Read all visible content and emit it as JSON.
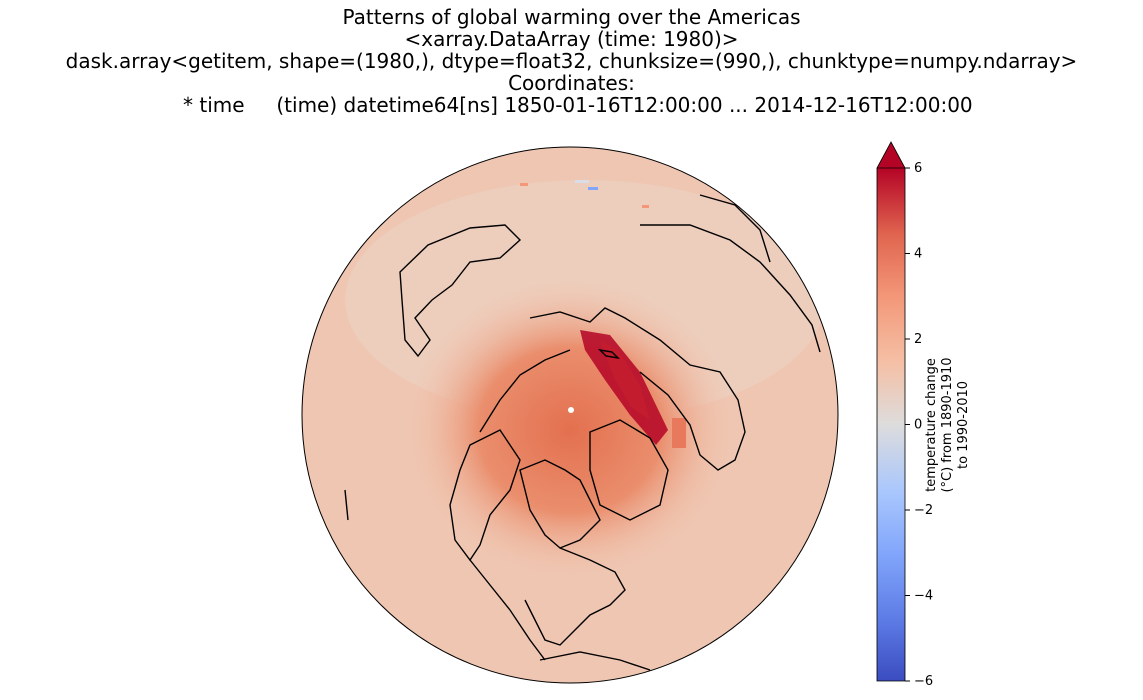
{
  "title": {
    "lines": [
      "Patterns of global warming over the Americas",
      "<xarray.DataArray (time: 1980)>",
      "dask.array<getitem, shape=(1980,), dtype=float32, chunksize=(990,), chunktype=numpy.ndarray>",
      "Coordinates:",
      "  * time     (time) datetime64[ns] 1850-01-16T12:00:00 ... 2014-12-16T12:00:00"
    ]
  },
  "colorbar": {
    "label_lines": [
      "temperature change",
      "(°C) from 1890-1910",
      "to 1990-2010"
    ],
    "vmin": -6,
    "vmax": 6,
    "extend": "max",
    "cmap": "coolwarm",
    "ticks": [
      {
        "value": -6,
        "label": "−6"
      },
      {
        "value": -4,
        "label": "−4"
      },
      {
        "value": -2,
        "label": "−2"
      },
      {
        "value": 0,
        "label": "0"
      },
      {
        "value": 2,
        "label": "2"
      },
      {
        "value": 4,
        "label": "4"
      },
      {
        "value": 6,
        "label": "6"
      }
    ]
  },
  "map": {
    "projection": "orthographic (north polar view)",
    "coastlines": true,
    "background_anomaly": 1.2,
    "arctic_anomaly": 3.6,
    "hotspot_anomaly": 6.0
  }
}
